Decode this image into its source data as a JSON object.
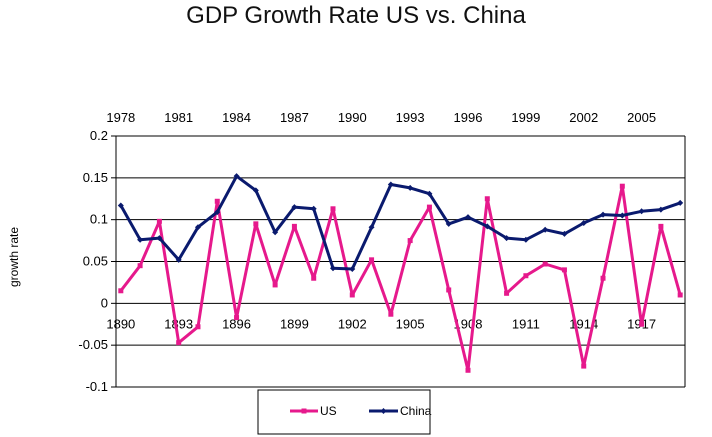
{
  "chart_data": {
    "type": "line",
    "title": "GDP Growth Rate US vs. China",
    "ylabel": "growth rate",
    "ylim": [
      -0.1,
      0.2
    ],
    "ytick_labels": [
      "0.2",
      "0.15",
      "0.1",
      "0.05",
      "0",
      "-0.05",
      "-0.1"
    ],
    "x_bottom_tick_labels": [
      "1890",
      "1893",
      "1896",
      "1899",
      "1902",
      "1905",
      "1908",
      "1911",
      "1914",
      "1917"
    ],
    "x_top_tick_labels": [
      "1978",
      "1981",
      "1984",
      "1987",
      "1990",
      "1993",
      "1996",
      "1999",
      "2002",
      "2005"
    ],
    "x_bottom_start": 1890,
    "x_top_start": 1978,
    "grid": "horizontal",
    "legend_position": "bottom",
    "series": [
      {
        "name": "US",
        "color": "#e6198c",
        "marker": "square",
        "axis": "bottom",
        "values": [
          0.015,
          0.045,
          0.098,
          -0.047,
          -0.028,
          0.122,
          -0.017,
          0.095,
          0.022,
          0.092,
          0.03,
          0.113,
          0.01,
          0.052,
          -0.013,
          0.075,
          0.115,
          0.016,
          -0.08,
          0.125,
          0.012,
          0.033,
          0.047,
          0.04,
          -0.075,
          0.03,
          0.14,
          -0.025,
          0.092,
          0.01
        ]
      },
      {
        "name": "China",
        "color": "#0a1a6e",
        "marker": "diamond",
        "axis": "top",
        "values": [
          0.117,
          0.076,
          0.078,
          0.052,
          0.091,
          0.109,
          0.152,
          0.135,
          0.085,
          0.115,
          0.113,
          0.042,
          0.041,
          0.091,
          0.142,
          0.138,
          0.131,
          0.095,
          0.103,
          0.092,
          0.078,
          0.076,
          0.088,
          0.083,
          0.096,
          0.106,
          0.105,
          0.11,
          0.112,
          0.12
        ]
      }
    ]
  }
}
